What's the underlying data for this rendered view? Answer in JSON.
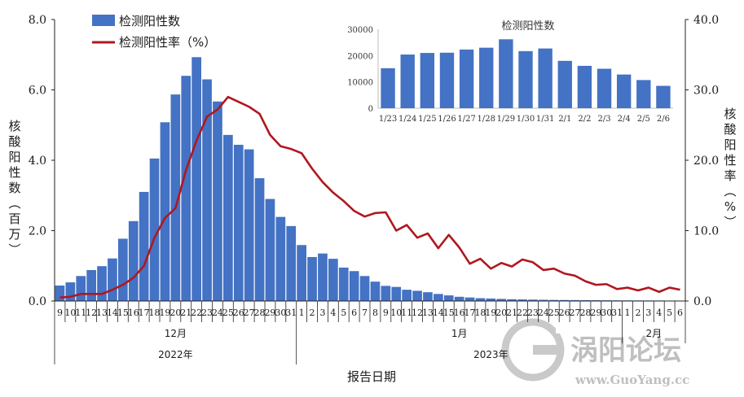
{
  "chart_data": {
    "type": "bar+line",
    "legend": [
      {
        "name": "检测阳性数",
        "kind": "bar",
        "color": "#4472C4"
      },
      {
        "name": "检测阳性率（%）",
        "kind": "line",
        "color": "#B0171F"
      }
    ],
    "ylabel_left": "核酸阳性数（百万）",
    "ylabel_right": "核酸阳性率（%）",
    "xlabel": "报告日期",
    "left_ticks": [
      "0.0",
      "2.0",
      "4.0",
      "6.0",
      "8.0"
    ],
    "right_ticks": [
      "0.0",
      "10.0",
      "20.0",
      "30.0",
      "40.0"
    ],
    "ylim_left": [
      0,
      8
    ],
    "ylim_right": [
      0,
      40
    ],
    "x_labels": [
      "9",
      "10",
      "11",
      "12",
      "13",
      "14",
      "15",
      "16",
      "17",
      "18",
      "19",
      "20",
      "21",
      "22",
      "23",
      "24",
      "25",
      "26",
      "27",
      "28",
      "29",
      "30",
      "31",
      "1",
      "2",
      "3",
      "4",
      "5",
      "6",
      "7",
      "8",
      "9",
      "10",
      "11",
      "12",
      "13",
      "14",
      "15",
      "16",
      "17",
      "18",
      "19",
      "20",
      "21",
      "22",
      "23",
      "24",
      "25",
      "26",
      "27",
      "28",
      "29",
      "30",
      "31",
      "1",
      "2",
      "3",
      "4",
      "5",
      "6"
    ],
    "month_groups": [
      {
        "label": "12月",
        "start": 0,
        "end": 22
      },
      {
        "label": "1月",
        "start": 23,
        "end": 53
      },
      {
        "label": "2月",
        "start": 54,
        "end": 59
      }
    ],
    "year_groups": [
      {
        "label": "2022年",
        "start": 0,
        "end": 22
      },
      {
        "label": "2023年",
        "start": 23,
        "end": 59
      }
    ],
    "bar_values": [
      0.44,
      0.53,
      0.71,
      0.88,
      0.99,
      1.21,
      1.77,
      2.27,
      3.1,
      4.05,
      5.08,
      5.87,
      6.4,
      6.93,
      6.3,
      5.67,
      4.72,
      4.44,
      4.31,
      3.49,
      2.9,
      2.39,
      2.13,
      1.59,
      1.25,
      1.35,
      1.2,
      0.95,
      0.85,
      0.71,
      0.55,
      0.43,
      0.4,
      0.32,
      0.29,
      0.25,
      0.2,
      0.16,
      0.12,
      0.1,
      0.08,
      0.07,
      0.06,
      0.05,
      0.045,
      0.04,
      0.035,
      0.03,
      0.028,
      0.026,
      0.024,
      0.022,
      0.02,
      0.018,
      0.017,
      0.016,
      0.015,
      0.014,
      0.012,
      0.01
    ],
    "line_values": [
      0.5,
      0.6,
      1.0,
      1.0,
      1.0,
      1.6,
      2.3,
      3.3,
      5.0,
      9.0,
      11.8,
      13.2,
      18.6,
      22.8,
      26.2,
      27.2,
      29.0,
      28.3,
      27.6,
      26.6,
      23.6,
      22.0,
      21.6,
      21.0,
      18.8,
      16.9,
      15.4,
      14.2,
      12.8,
      12.0,
      12.5,
      12.6,
      10.0,
      10.8,
      9.0,
      9.6,
      7.5,
      9.4,
      7.6,
      5.3,
      6.0,
      4.6,
      5.4,
      4.9,
      5.9,
      5.5,
      4.4,
      4.6,
      3.9,
      3.6,
      2.8,
      2.3,
      2.4,
      1.7,
      1.9,
      1.5,
      1.9,
      1.3,
      1.9,
      1.6
    ],
    "inset": {
      "title": "检测阳性数",
      "categories": [
        "1/23",
        "1/24",
        "1/25",
        "1/26",
        "1/27",
        "1/28",
        "1/29",
        "1/30",
        "1/31",
        "2/1",
        "2/2",
        "2/3",
        "2/4",
        "2/5",
        "2/6"
      ],
      "values": [
        15200,
        20400,
        21000,
        21100,
        22300,
        23000,
        26200,
        21700,
        22700,
        18000,
        16100,
        15000,
        12800,
        10700,
        8500
      ],
      "ticks": [
        "0",
        "10000",
        "20000",
        "30000"
      ],
      "ylim": [
        0,
        30000
      ]
    }
  },
  "watermark": {
    "title": "涡阳论坛",
    "url": "www.GuoYang.cc"
  },
  "colors": {
    "bar": "#4472C4",
    "line": "#B0171F",
    "axis": "#222222"
  }
}
